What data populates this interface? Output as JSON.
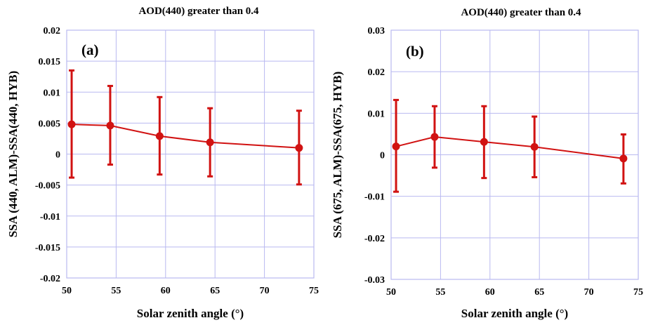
{
  "chart_data": [
    {
      "type": "line",
      "panel_label": "(a)",
      "title": "AOD(440) greater than 0.4",
      "xlabel": "Solar zenith angle (°)",
      "ylabel": "SSA (440, ALM)-SSA(440, HYB)",
      "xlim": [
        50,
        75
      ],
      "ylim": [
        -0.02,
        0.02
      ],
      "xticks": [
        "50",
        "55",
        "60",
        "65",
        "70",
        "75"
      ],
      "xtick_values": [
        50,
        55,
        60,
        65,
        70,
        75
      ],
      "yticks": [
        "0.02",
        "0.015",
        "0.01",
        "0.005",
        "0",
        "-0.005",
        "-0.01",
        "-0.015",
        "-0.02"
      ],
      "ytick_values": [
        0.02,
        0.015,
        0.01,
        0.005,
        0,
        -0.005,
        -0.01,
        -0.015,
        -0.02
      ],
      "grid": true,
      "series": [
        {
          "x": [
            50.5,
            54.4,
            59.4,
            64.5,
            73.5
          ],
          "y": [
            0.0048,
            0.0046,
            0.0029,
            0.0019,
            0.001
          ],
          "err_low": [
            -0.0038,
            -0.0017,
            -0.0033,
            -0.0036,
            -0.0049
          ],
          "err_high": [
            0.0135,
            0.011,
            0.0092,
            0.0074,
            0.007
          ],
          "color": "#d11212"
        }
      ]
    },
    {
      "type": "line",
      "panel_label": "(b)",
      "title": "AOD(440) greater than 0.4",
      "xlabel": "Solar zenith angle (°)",
      "ylabel": "SSA (675, ALM)-SSA(675, HYB)",
      "xlim": [
        50,
        75
      ],
      "ylim": [
        -0.03,
        0.03
      ],
      "xticks": [
        "50",
        "55",
        "60",
        "65",
        "70",
        "75"
      ],
      "xtick_values": [
        50,
        55,
        60,
        65,
        70,
        75
      ],
      "yticks": [
        "0.03",
        "0.02",
        "0.01",
        "0",
        "-0.01",
        "-0.02",
        "-0.03"
      ],
      "ytick_values": [
        0.03,
        0.02,
        0.01,
        0,
        -0.01,
        -0.02,
        -0.03
      ],
      "grid": true,
      "series": [
        {
          "x": [
            50.5,
            54.4,
            59.4,
            64.5,
            73.5
          ],
          "y": [
            0.002,
            0.0043,
            0.0031,
            0.0019,
            -0.0009
          ],
          "err_low": [
            -0.0089,
            -0.0031,
            -0.0056,
            -0.0054,
            -0.0069
          ],
          "err_high": [
            0.0132,
            0.0117,
            0.0117,
            0.0092,
            0.0049
          ],
          "color": "#d11212"
        }
      ]
    }
  ]
}
